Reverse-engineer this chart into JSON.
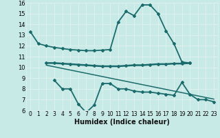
{
  "xlabel": "Humidex (Indice chaleur)",
  "xlim": [
    -0.5,
    23.5
  ],
  "ylim": [
    6,
    16
  ],
  "yticks": [
    6,
    7,
    8,
    9,
    10,
    11,
    12,
    13,
    14,
    15,
    16
  ],
  "xticks": [
    0,
    1,
    2,
    3,
    4,
    5,
    6,
    7,
    8,
    9,
    10,
    11,
    12,
    13,
    14,
    15,
    16,
    17,
    18,
    19,
    20,
    21,
    22,
    23
  ],
  "bg_color": "#c8eae6",
  "line_color": "#1a6b6b",
  "grid_color": "#e0f0ee",
  "lines": [
    {
      "x": [
        0,
        1,
        2,
        3,
        4,
        5,
        6,
        7,
        8,
        9,
        10,
        11,
        12,
        13,
        14,
        15,
        16,
        17,
        18,
        19,
        20
      ],
      "y": [
        13.3,
        12.2,
        12.0,
        11.85,
        11.75,
        11.65,
        11.6,
        11.55,
        11.55,
        11.6,
        11.65,
        14.2,
        15.2,
        14.8,
        15.8,
        15.8,
        15.0,
        13.4,
        12.2,
        10.5,
        10.4
      ],
      "marker": true,
      "lw": 1.3
    },
    {
      "x": [
        2,
        3,
        4,
        5,
        6,
        7,
        8,
        9,
        10,
        11,
        12,
        13,
        14,
        15,
        16,
        17,
        18,
        19,
        20
      ],
      "y": [
        10.4,
        10.4,
        10.35,
        10.3,
        10.25,
        10.2,
        10.15,
        10.1,
        10.1,
        10.1,
        10.15,
        10.2,
        10.2,
        10.25,
        10.3,
        10.3,
        10.35,
        10.35,
        10.4
      ],
      "marker": true,
      "lw": 1.8
    },
    {
      "x": [
        3,
        4,
        5,
        6,
        7,
        8,
        9,
        10,
        11,
        12,
        13,
        14,
        15,
        16,
        17,
        18,
        19,
        20,
        21,
        22,
        23
      ],
      "y": [
        8.8,
        8.0,
        8.0,
        6.6,
        5.8,
        6.5,
        8.5,
        8.5,
        8.0,
        8.0,
        7.8,
        7.7,
        7.7,
        7.6,
        7.5,
        7.4,
        8.6,
        7.5,
        7.0,
        7.0,
        6.8
      ],
      "marker": true,
      "lw": 1.3
    },
    {
      "x": [
        2,
        3,
        4,
        5,
        6,
        7,
        8,
        9,
        10,
        11,
        12,
        13,
        14,
        15,
        16,
        17,
        18,
        19,
        20,
        21,
        22,
        23
      ],
      "y": [
        10.2,
        10.05,
        9.9,
        9.75,
        9.6,
        9.45,
        9.3,
        9.15,
        9.0,
        8.85,
        8.7,
        8.55,
        8.4,
        8.25,
        8.1,
        7.95,
        7.8,
        7.65,
        7.5,
        7.35,
        7.2,
        7.05
      ],
      "marker": false,
      "lw": 1.1
    }
  ]
}
